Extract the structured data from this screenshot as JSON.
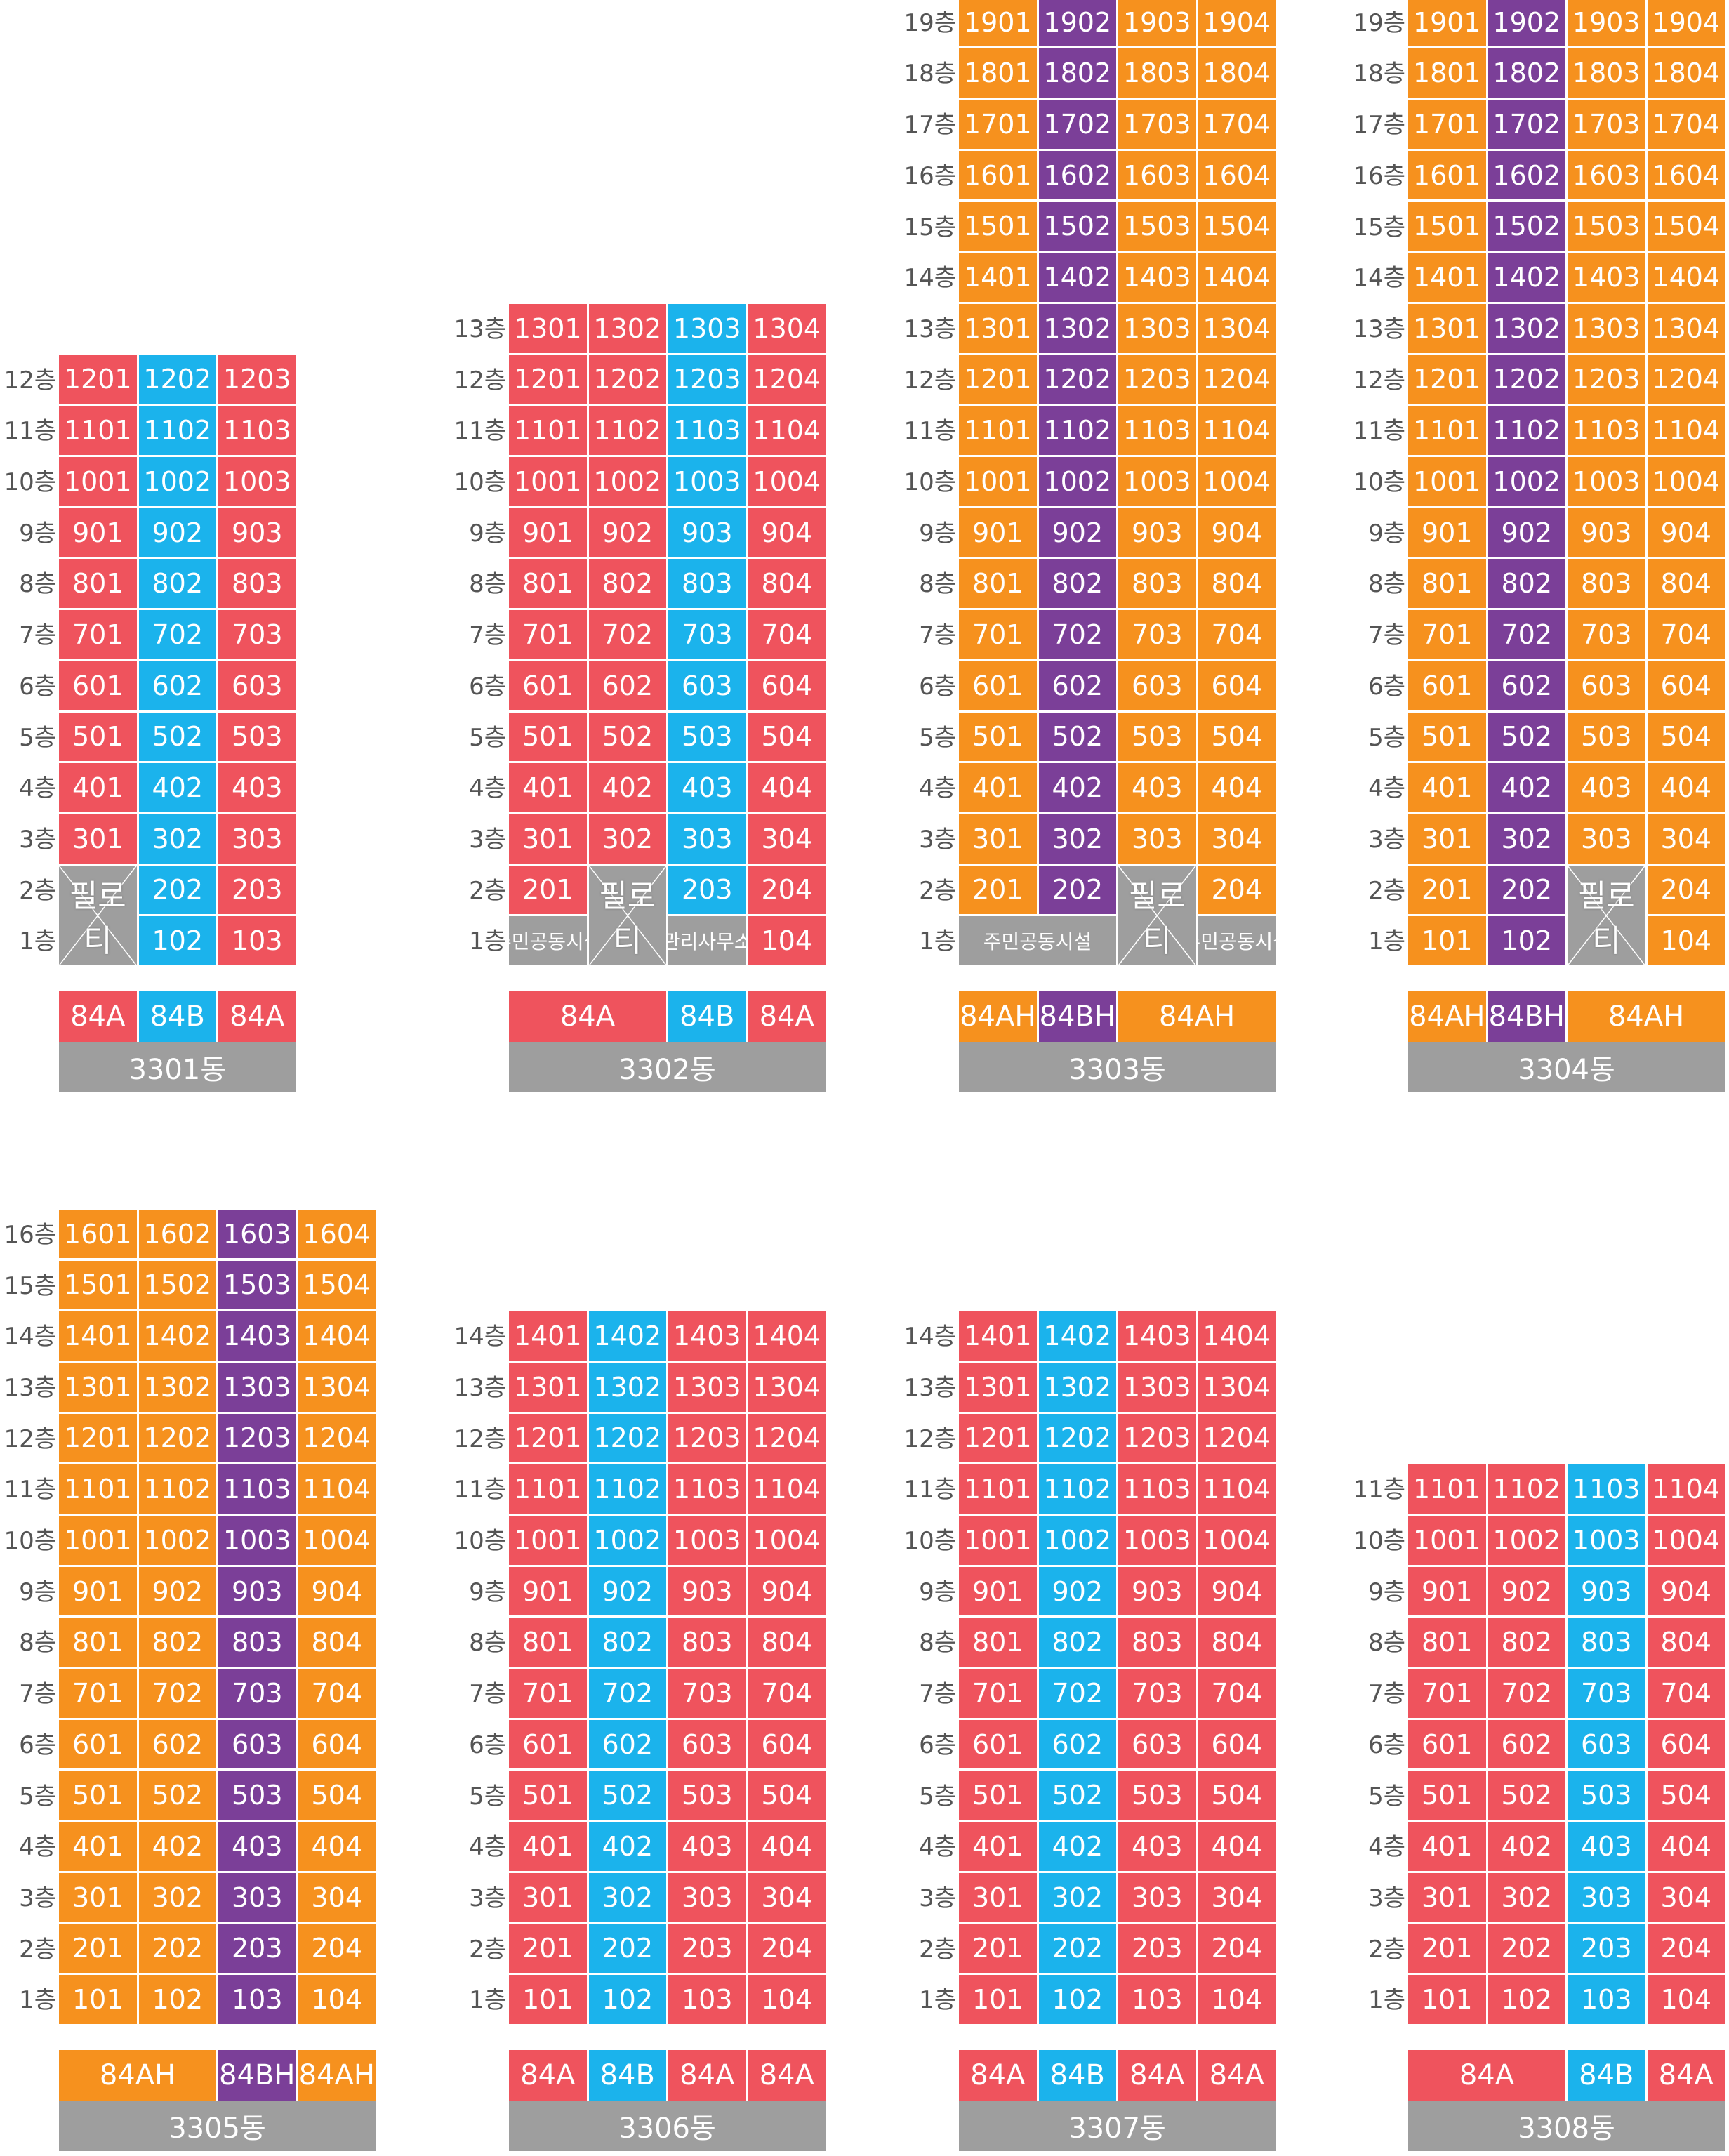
{
  "colors": {
    "84A": "#ef535d",
    "84B": "#1bb3ec",
    "84AH": "#f6911e",
    "84BH": "#7b3f98",
    "special": "#9e9e9e"
  },
  "floor_suffix": "층",
  "piloti_label": "필로티",
  "buildings": [
    {
      "id": "b3301",
      "name": "3301동",
      "floors": 12,
      "unit_colors": [
        "84A",
        "84B",
        "84A"
      ],
      "type_row": [
        {
          "label": "84A",
          "span": 1,
          "color": "84A"
        },
        {
          "label": "84B",
          "span": 1,
          "color": "84B"
        },
        {
          "label": "84A",
          "span": 1,
          "color": "84A"
        }
      ],
      "special": [
        {
          "col": 0,
          "floor": 2,
          "span_floors": 2,
          "kind": "piloti",
          "label": "필로티"
        }
      ],
      "unit_numbers": [
        [
          "1201",
          "1202",
          "1203"
        ],
        [
          "1101",
          "1102",
          "1103"
        ],
        [
          "1001",
          "1002",
          "1003"
        ],
        [
          "901",
          "902",
          "903"
        ],
        [
          "801",
          "802",
          "803"
        ],
        [
          "701",
          "702",
          "703"
        ],
        [
          "601",
          "602",
          "603"
        ],
        [
          "501",
          "502",
          "503"
        ],
        [
          "401",
          "402",
          "403"
        ],
        [
          "301",
          "302",
          "303"
        ],
        [
          "",
          "202",
          "203"
        ],
        [
          "",
          "102",
          "103"
        ]
      ]
    },
    {
      "id": "b3302",
      "name": "3302동",
      "floors": 13,
      "unit_colors": [
        "84A",
        "84A",
        "84B",
        "84A"
      ],
      "type_row": [
        {
          "label": "84A",
          "span": 2,
          "color": "84A"
        },
        {
          "label": "84B",
          "span": 1,
          "color": "84B"
        },
        {
          "label": "84A",
          "span": 1,
          "color": "84A"
        }
      ],
      "special": [
        {
          "col": 1,
          "floor": 2,
          "span_floors": 2,
          "kind": "piloti",
          "label": "필로티"
        },
        {
          "col": 0,
          "floor": 1,
          "span_floors": 1,
          "kind": "facility",
          "label": "주민공동시설"
        },
        {
          "col": 2,
          "floor": 1,
          "span_floors": 1,
          "kind": "facility",
          "label": "관리사무소"
        }
      ],
      "unit_numbers": [
        [
          "1301",
          "1302",
          "1303",
          "1304"
        ],
        [
          "1201",
          "1202",
          "1203",
          "1204"
        ],
        [
          "1101",
          "1102",
          "1103",
          "1104"
        ],
        [
          "1001",
          "1002",
          "1003",
          "1004"
        ],
        [
          "901",
          "902",
          "903",
          "904"
        ],
        [
          "801",
          "802",
          "803",
          "804"
        ],
        [
          "701",
          "702",
          "703",
          "704"
        ],
        [
          "601",
          "602",
          "603",
          "604"
        ],
        [
          "501",
          "502",
          "503",
          "504"
        ],
        [
          "401",
          "402",
          "403",
          "404"
        ],
        [
          "301",
          "302",
          "303",
          "304"
        ],
        [
          "201",
          "",
          "203",
          "204"
        ],
        [
          "",
          "",
          "",
          "104"
        ]
      ]
    },
    {
      "id": "b3303",
      "name": "3303동",
      "floors": 19,
      "unit_colors": [
        "84AH",
        "84BH",
        "84AH",
        "84AH"
      ],
      "type_row": [
        {
          "label": "84AH",
          "span": 1,
          "color": "84AH"
        },
        {
          "label": "84BH",
          "span": 1,
          "color": "84BH"
        },
        {
          "label": "84AH",
          "span": 2,
          "color": "84AH"
        }
      ],
      "special": [
        {
          "col": 2,
          "floor": 2,
          "span_floors": 2,
          "kind": "piloti",
          "label": "필로티"
        },
        {
          "col": 0,
          "floor": 1,
          "span_floors": 1,
          "span_cols": 2,
          "kind": "facility",
          "label": "주민공동시설"
        },
        {
          "col": 3,
          "floor": 1,
          "span_floors": 1,
          "kind": "facility",
          "label": "주민공동시설"
        }
      ],
      "unit_numbers": [
        [
          "1901",
          "1902",
          "1903",
          "1904"
        ],
        [
          "1801",
          "1802",
          "1803",
          "1804"
        ],
        [
          "1701",
          "1702",
          "1703",
          "1704"
        ],
        [
          "1601",
          "1602",
          "1603",
          "1604"
        ],
        [
          "1501",
          "1502",
          "1503",
          "1504"
        ],
        [
          "1401",
          "1402",
          "1403",
          "1404"
        ],
        [
          "1301",
          "1302",
          "1303",
          "1304"
        ],
        [
          "1201",
          "1202",
          "1203",
          "1204"
        ],
        [
          "1101",
          "1102",
          "1103",
          "1104"
        ],
        [
          "1001",
          "1002",
          "1003",
          "1004"
        ],
        [
          "901",
          "902",
          "903",
          "904"
        ],
        [
          "801",
          "802",
          "803",
          "804"
        ],
        [
          "701",
          "702",
          "703",
          "704"
        ],
        [
          "601",
          "602",
          "603",
          "604"
        ],
        [
          "501",
          "502",
          "503",
          "504"
        ],
        [
          "401",
          "402",
          "403",
          "404"
        ],
        [
          "301",
          "302",
          "303",
          "304"
        ],
        [
          "201",
          "202",
          "",
          "204"
        ],
        [
          "",
          "",
          "",
          ""
        ]
      ]
    },
    {
      "id": "b3304",
      "name": "3304동",
      "floors": 19,
      "unit_colors": [
        "84AH",
        "84BH",
        "84AH",
        "84AH"
      ],
      "type_row": [
        {
          "label": "84AH",
          "span": 1,
          "color": "84AH"
        },
        {
          "label": "84BH",
          "span": 1,
          "color": "84BH"
        },
        {
          "label": "84AH",
          "span": 2,
          "color": "84AH"
        }
      ],
      "special": [
        {
          "col": 2,
          "floor": 2,
          "span_floors": 2,
          "kind": "piloti",
          "label": "필로티"
        }
      ],
      "unit_numbers": [
        [
          "1901",
          "1902",
          "1903",
          "1904"
        ],
        [
          "1801",
          "1802",
          "1803",
          "1804"
        ],
        [
          "1701",
          "1702",
          "1703",
          "1704"
        ],
        [
          "1601",
          "1602",
          "1603",
          "1604"
        ],
        [
          "1501",
          "1502",
          "1503",
          "1504"
        ],
        [
          "1401",
          "1402",
          "1403",
          "1404"
        ],
        [
          "1301",
          "1302",
          "1303",
          "1304"
        ],
        [
          "1201",
          "1202",
          "1203",
          "1204"
        ],
        [
          "1101",
          "1102",
          "1103",
          "1104"
        ],
        [
          "1001",
          "1002",
          "1003",
          "1004"
        ],
        [
          "901",
          "902",
          "903",
          "904"
        ],
        [
          "801",
          "802",
          "803",
          "804"
        ],
        [
          "701",
          "702",
          "703",
          "704"
        ],
        [
          "601",
          "602",
          "603",
          "604"
        ],
        [
          "501",
          "502",
          "503",
          "504"
        ],
        [
          "401",
          "402",
          "403",
          "404"
        ],
        [
          "301",
          "302",
          "303",
          "304"
        ],
        [
          "201",
          "202",
          "",
          "204"
        ],
        [
          "101",
          "102",
          "",
          "104"
        ]
      ]
    },
    {
      "id": "b3305",
      "name": "3305동",
      "floors": 16,
      "unit_colors": [
        "84AH",
        "84AH",
        "84BH",
        "84AH"
      ],
      "type_row": [
        {
          "label": "84AH",
          "span": 2,
          "color": "84AH"
        },
        {
          "label": "84BH",
          "span": 1,
          "color": "84BH"
        },
        {
          "label": "84AH",
          "span": 1,
          "color": "84AH"
        }
      ],
      "special": [],
      "unit_numbers": [
        [
          "1601",
          "1602",
          "1603",
          "1604"
        ],
        [
          "1501",
          "1502",
          "1503",
          "1504"
        ],
        [
          "1401",
          "1402",
          "1403",
          "1404"
        ],
        [
          "1301",
          "1302",
          "1303",
          "1304"
        ],
        [
          "1201",
          "1202",
          "1203",
          "1204"
        ],
        [
          "1101",
          "1102",
          "1103",
          "1104"
        ],
        [
          "1001",
          "1002",
          "1003",
          "1004"
        ],
        [
          "901",
          "902",
          "903",
          "904"
        ],
        [
          "801",
          "802",
          "803",
          "804"
        ],
        [
          "701",
          "702",
          "703",
          "704"
        ],
        [
          "601",
          "602",
          "603",
          "604"
        ],
        [
          "501",
          "502",
          "503",
          "504"
        ],
        [
          "401",
          "402",
          "403",
          "404"
        ],
        [
          "301",
          "302",
          "303",
          "304"
        ],
        [
          "201",
          "202",
          "203",
          "204"
        ],
        [
          "101",
          "102",
          "103",
          "104"
        ]
      ]
    },
    {
      "id": "b3306",
      "name": "3306동",
      "floors": 14,
      "unit_colors": [
        "84A",
        "84B",
        "84A",
        "84A"
      ],
      "type_row": [
        {
          "label": "84A",
          "span": 1,
          "color": "84A"
        },
        {
          "label": "84B",
          "span": 1,
          "color": "84B"
        },
        {
          "label": "84A",
          "span": 1,
          "color": "84A"
        },
        {
          "label": "84A",
          "span": 1,
          "color": "84A"
        }
      ],
      "special": [],
      "unit_numbers": [
        [
          "1401",
          "1402",
          "1403",
          "1404"
        ],
        [
          "1301",
          "1302",
          "1303",
          "1304"
        ],
        [
          "1201",
          "1202",
          "1203",
          "1204"
        ],
        [
          "1101",
          "1102",
          "1103",
          "1104"
        ],
        [
          "1001",
          "1002",
          "1003",
          "1004"
        ],
        [
          "901",
          "902",
          "903",
          "904"
        ],
        [
          "801",
          "802",
          "803",
          "804"
        ],
        [
          "701",
          "702",
          "703",
          "704"
        ],
        [
          "601",
          "602",
          "603",
          "604"
        ],
        [
          "501",
          "502",
          "503",
          "504"
        ],
        [
          "401",
          "402",
          "403",
          "404"
        ],
        [
          "301",
          "302",
          "303",
          "304"
        ],
        [
          "201",
          "202",
          "203",
          "204"
        ],
        [
          "101",
          "102",
          "103",
          "104"
        ]
      ]
    },
    {
      "id": "b3307",
      "name": "3307동",
      "floors": 14,
      "unit_colors": [
        "84A",
        "84B",
        "84A",
        "84A"
      ],
      "type_row": [
        {
          "label": "84A",
          "span": 1,
          "color": "84A"
        },
        {
          "label": "84B",
          "span": 1,
          "color": "84B"
        },
        {
          "label": "84A",
          "span": 1,
          "color": "84A"
        },
        {
          "label": "84A",
          "span": 1,
          "color": "84A"
        }
      ],
      "special": [],
      "unit_numbers": [
        [
          "1401",
          "1402",
          "1403",
          "1404"
        ],
        [
          "1301",
          "1302",
          "1303",
          "1304"
        ],
        [
          "1201",
          "1202",
          "1203",
          "1204"
        ],
        [
          "1101",
          "1102",
          "1103",
          "1104"
        ],
        [
          "1001",
          "1002",
          "1003",
          "1004"
        ],
        [
          "901",
          "902",
          "903",
          "904"
        ],
        [
          "801",
          "802",
          "803",
          "804"
        ],
        [
          "701",
          "702",
          "703",
          "704"
        ],
        [
          "601",
          "602",
          "603",
          "604"
        ],
        [
          "501",
          "502",
          "503",
          "504"
        ],
        [
          "401",
          "402",
          "403",
          "404"
        ],
        [
          "301",
          "302",
          "303",
          "304"
        ],
        [
          "201",
          "202",
          "203",
          "204"
        ],
        [
          "101",
          "102",
          "103",
          "104"
        ]
      ]
    },
    {
      "id": "b3308",
      "name": "3308동",
      "floors": 11,
      "unit_colors": [
        "84A",
        "84A",
        "84B",
        "84A"
      ],
      "type_row": [
        {
          "label": "84A",
          "span": 2,
          "color": "84A"
        },
        {
          "label": "84B",
          "span": 1,
          "color": "84B"
        },
        {
          "label": "84A",
          "span": 1,
          "color": "84A"
        }
      ],
      "special": [],
      "unit_numbers": [
        [
          "1101",
          "1102",
          "1103",
          "1104"
        ],
        [
          "1001",
          "1002",
          "1003",
          "1004"
        ],
        [
          "901",
          "902",
          "903",
          "904"
        ],
        [
          "801",
          "802",
          "803",
          "804"
        ],
        [
          "701",
          "702",
          "703",
          "704"
        ],
        [
          "601",
          "602",
          "603",
          "604"
        ],
        [
          "501",
          "502",
          "503",
          "504"
        ],
        [
          "401",
          "402",
          "403",
          "404"
        ],
        [
          "301",
          "302",
          "303",
          "304"
        ],
        [
          "201",
          "202",
          "203",
          "204"
        ],
        [
          "101",
          "102",
          "103",
          "104"
        ]
      ]
    }
  ]
}
